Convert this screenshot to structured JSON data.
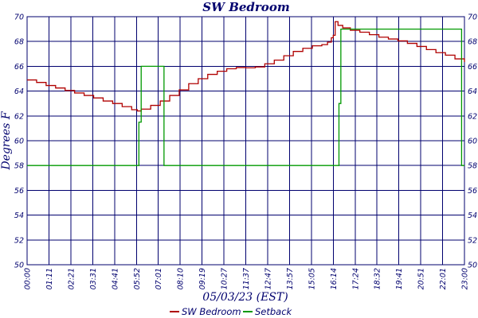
{
  "chart_data": {
    "type": "line",
    "title": "SW Bedroom",
    "xlabel": "05/03/23 (EST)",
    "ylabel": "Degrees F",
    "x_ticks": [
      "00:00",
      "01:11",
      "02:21",
      "03:31",
      "04:41",
      "05:52",
      "07:01",
      "08:10",
      "09:19",
      "10:27",
      "11:37",
      "12:47",
      "13:57",
      "15:05",
      "16:14",
      "17:24",
      "18:32",
      "19:41",
      "20:51",
      "22:01",
      "23:00"
    ],
    "y_ticks": [
      50,
      52,
      54,
      56,
      58,
      60,
      62,
      64,
      66,
      68,
      70
    ],
    "ylim": [
      50,
      70
    ],
    "xlim": [
      0,
      23.0
    ],
    "grid": true,
    "legend_position": "bottom-center",
    "colors": {
      "frame": "#00006e",
      "text": "#00006e"
    },
    "series": [
      {
        "name": "SW Bedroom",
        "color": "#b00000",
        "step": true,
        "points": [
          [
            0.0,
            64.9
          ],
          [
            0.5,
            64.7
          ],
          [
            1.0,
            64.45
          ],
          [
            1.5,
            64.25
          ],
          [
            2.0,
            64.05
          ],
          [
            2.5,
            63.85
          ],
          [
            3.0,
            63.65
          ],
          [
            3.5,
            63.45
          ],
          [
            4.0,
            63.2
          ],
          [
            4.5,
            63.0
          ],
          [
            5.0,
            62.75
          ],
          [
            5.5,
            62.5
          ],
          [
            5.8,
            62.4
          ],
          [
            6.0,
            62.55
          ],
          [
            6.5,
            62.85
          ],
          [
            7.0,
            63.2
          ],
          [
            7.5,
            63.65
          ],
          [
            8.0,
            64.1
          ],
          [
            8.5,
            64.6
          ],
          [
            9.0,
            65.0
          ],
          [
            9.5,
            65.35
          ],
          [
            10.0,
            65.6
          ],
          [
            10.5,
            65.8
          ],
          [
            11.0,
            65.9
          ],
          [
            11.5,
            65.88
          ],
          [
            12.0,
            65.95
          ],
          [
            12.5,
            66.2
          ],
          [
            13.0,
            66.5
          ],
          [
            13.5,
            66.85
          ],
          [
            14.0,
            67.2
          ],
          [
            14.5,
            67.45
          ],
          [
            15.0,
            67.65
          ],
          [
            15.5,
            67.75
          ],
          [
            15.8,
            67.95
          ],
          [
            16.0,
            68.3
          ],
          [
            16.1,
            68.5
          ],
          [
            16.2,
            69.6
          ],
          [
            16.35,
            69.3
          ],
          [
            16.6,
            69.1
          ],
          [
            17.0,
            68.9
          ],
          [
            17.5,
            68.75
          ],
          [
            18.0,
            68.55
          ],
          [
            18.5,
            68.35
          ],
          [
            19.0,
            68.2
          ],
          [
            19.5,
            68.05
          ],
          [
            20.0,
            67.85
          ],
          [
            20.5,
            67.6
          ],
          [
            21.0,
            67.35
          ],
          [
            21.5,
            67.1
          ],
          [
            22.0,
            66.9
          ],
          [
            22.5,
            66.6
          ],
          [
            23.0,
            66.35
          ]
        ]
      },
      {
        "name": "Setback",
        "color": "#009900",
        "step": true,
        "points": [
          [
            0.0,
            58.0
          ],
          [
            5.88,
            58.0
          ],
          [
            5.88,
            61.5
          ],
          [
            6.0,
            61.5
          ],
          [
            6.0,
            66.0
          ],
          [
            7.2,
            66.0
          ],
          [
            7.2,
            58.0
          ],
          [
            16.4,
            58.0
          ],
          [
            16.4,
            63.0
          ],
          [
            16.5,
            63.0
          ],
          [
            16.5,
            69.0
          ],
          [
            22.85,
            69.0
          ],
          [
            22.85,
            58.0
          ],
          [
            23.0,
            58.0
          ]
        ]
      }
    ]
  }
}
